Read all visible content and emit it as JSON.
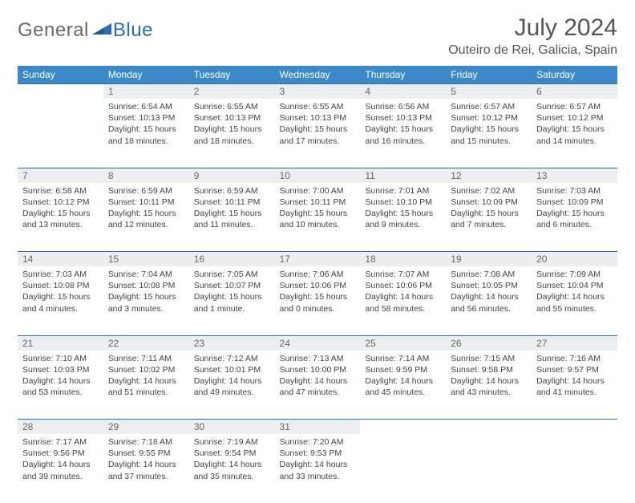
{
  "brand": {
    "word1": "General",
    "word2": "Blue"
  },
  "title": "July 2024",
  "location": "Outeiro de Rei, Galicia, Spain",
  "colors": {
    "header_bg": "#3b89c9",
    "border": "#2a6fb3",
    "daynum_bg": "#eceff1",
    "text": "#444444",
    "title_text": "#555555",
    "logo_gray": "#6a6a6a",
    "logo_blue": "#2a6fb3"
  },
  "dayHeaders": [
    "Sunday",
    "Monday",
    "Tuesday",
    "Wednesday",
    "Thursday",
    "Friday",
    "Saturday"
  ],
  "weeks": [
    [
      {
        "num": "",
        "lines": []
      },
      {
        "num": "1",
        "lines": [
          "Sunrise: 6:54 AM",
          "Sunset: 10:13 PM",
          "Daylight: 15 hours",
          "and 18 minutes."
        ]
      },
      {
        "num": "2",
        "lines": [
          "Sunrise: 6:55 AM",
          "Sunset: 10:13 PM",
          "Daylight: 15 hours",
          "and 18 minutes."
        ]
      },
      {
        "num": "3",
        "lines": [
          "Sunrise: 6:55 AM",
          "Sunset: 10:13 PM",
          "Daylight: 15 hours",
          "and 17 minutes."
        ]
      },
      {
        "num": "4",
        "lines": [
          "Sunrise: 6:56 AM",
          "Sunset: 10:13 PM",
          "Daylight: 15 hours",
          "and 16 minutes."
        ]
      },
      {
        "num": "5",
        "lines": [
          "Sunrise: 6:57 AM",
          "Sunset: 10:12 PM",
          "Daylight: 15 hours",
          "and 15 minutes."
        ]
      },
      {
        "num": "6",
        "lines": [
          "Sunrise: 6:57 AM",
          "Sunset: 10:12 PM",
          "Daylight: 15 hours",
          "and 14 minutes."
        ]
      }
    ],
    [
      {
        "num": "7",
        "lines": [
          "Sunrise: 6:58 AM",
          "Sunset: 10:12 PM",
          "Daylight: 15 hours",
          "and 13 minutes."
        ]
      },
      {
        "num": "8",
        "lines": [
          "Sunrise: 6:59 AM",
          "Sunset: 10:11 PM",
          "Daylight: 15 hours",
          "and 12 minutes."
        ]
      },
      {
        "num": "9",
        "lines": [
          "Sunrise: 6:59 AM",
          "Sunset: 10:11 PM",
          "Daylight: 15 hours",
          "and 11 minutes."
        ]
      },
      {
        "num": "10",
        "lines": [
          "Sunrise: 7:00 AM",
          "Sunset: 10:11 PM",
          "Daylight: 15 hours",
          "and 10 minutes."
        ]
      },
      {
        "num": "11",
        "lines": [
          "Sunrise: 7:01 AM",
          "Sunset: 10:10 PM",
          "Daylight: 15 hours",
          "and 9 minutes."
        ]
      },
      {
        "num": "12",
        "lines": [
          "Sunrise: 7:02 AM",
          "Sunset: 10:09 PM",
          "Daylight: 15 hours",
          "and 7 minutes."
        ]
      },
      {
        "num": "13",
        "lines": [
          "Sunrise: 7:03 AM",
          "Sunset: 10:09 PM",
          "Daylight: 15 hours",
          "and 6 minutes."
        ]
      }
    ],
    [
      {
        "num": "14",
        "lines": [
          "Sunrise: 7:03 AM",
          "Sunset: 10:08 PM",
          "Daylight: 15 hours",
          "and 4 minutes."
        ]
      },
      {
        "num": "15",
        "lines": [
          "Sunrise: 7:04 AM",
          "Sunset: 10:08 PM",
          "Daylight: 15 hours",
          "and 3 minutes."
        ]
      },
      {
        "num": "16",
        "lines": [
          "Sunrise: 7:05 AM",
          "Sunset: 10:07 PM",
          "Daylight: 15 hours",
          "and 1 minute."
        ]
      },
      {
        "num": "17",
        "lines": [
          "Sunrise: 7:06 AM",
          "Sunset: 10:06 PM",
          "Daylight: 15 hours",
          "and 0 minutes."
        ]
      },
      {
        "num": "18",
        "lines": [
          "Sunrise: 7:07 AM",
          "Sunset: 10:06 PM",
          "Daylight: 14 hours",
          "and 58 minutes."
        ]
      },
      {
        "num": "19",
        "lines": [
          "Sunrise: 7:08 AM",
          "Sunset: 10:05 PM",
          "Daylight: 14 hours",
          "and 56 minutes."
        ]
      },
      {
        "num": "20",
        "lines": [
          "Sunrise: 7:09 AM",
          "Sunset: 10:04 PM",
          "Daylight: 14 hours",
          "and 55 minutes."
        ]
      }
    ],
    [
      {
        "num": "21",
        "lines": [
          "Sunrise: 7:10 AM",
          "Sunset: 10:03 PM",
          "Daylight: 14 hours",
          "and 53 minutes."
        ]
      },
      {
        "num": "22",
        "lines": [
          "Sunrise: 7:11 AM",
          "Sunset: 10:02 PM",
          "Daylight: 14 hours",
          "and 51 minutes."
        ]
      },
      {
        "num": "23",
        "lines": [
          "Sunrise: 7:12 AM",
          "Sunset: 10:01 PM",
          "Daylight: 14 hours",
          "and 49 minutes."
        ]
      },
      {
        "num": "24",
        "lines": [
          "Sunrise: 7:13 AM",
          "Sunset: 10:00 PM",
          "Daylight: 14 hours",
          "and 47 minutes."
        ]
      },
      {
        "num": "25",
        "lines": [
          "Sunrise: 7:14 AM",
          "Sunset: 9:59 PM",
          "Daylight: 14 hours",
          "and 45 minutes."
        ]
      },
      {
        "num": "26",
        "lines": [
          "Sunrise: 7:15 AM",
          "Sunset: 9:58 PM",
          "Daylight: 14 hours",
          "and 43 minutes."
        ]
      },
      {
        "num": "27",
        "lines": [
          "Sunrise: 7:16 AM",
          "Sunset: 9:57 PM",
          "Daylight: 14 hours",
          "and 41 minutes."
        ]
      }
    ],
    [
      {
        "num": "28",
        "lines": [
          "Sunrise: 7:17 AM",
          "Sunset: 9:56 PM",
          "Daylight: 14 hours",
          "and 39 minutes."
        ]
      },
      {
        "num": "29",
        "lines": [
          "Sunrise: 7:18 AM",
          "Sunset: 9:55 PM",
          "Daylight: 14 hours",
          "and 37 minutes."
        ]
      },
      {
        "num": "30",
        "lines": [
          "Sunrise: 7:19 AM",
          "Sunset: 9:54 PM",
          "Daylight: 14 hours",
          "and 35 minutes."
        ]
      },
      {
        "num": "31",
        "lines": [
          "Sunrise: 7:20 AM",
          "Sunset: 9:53 PM",
          "Daylight: 14 hours",
          "and 33 minutes."
        ]
      },
      {
        "num": "",
        "lines": []
      },
      {
        "num": "",
        "lines": []
      },
      {
        "num": "",
        "lines": []
      }
    ]
  ]
}
